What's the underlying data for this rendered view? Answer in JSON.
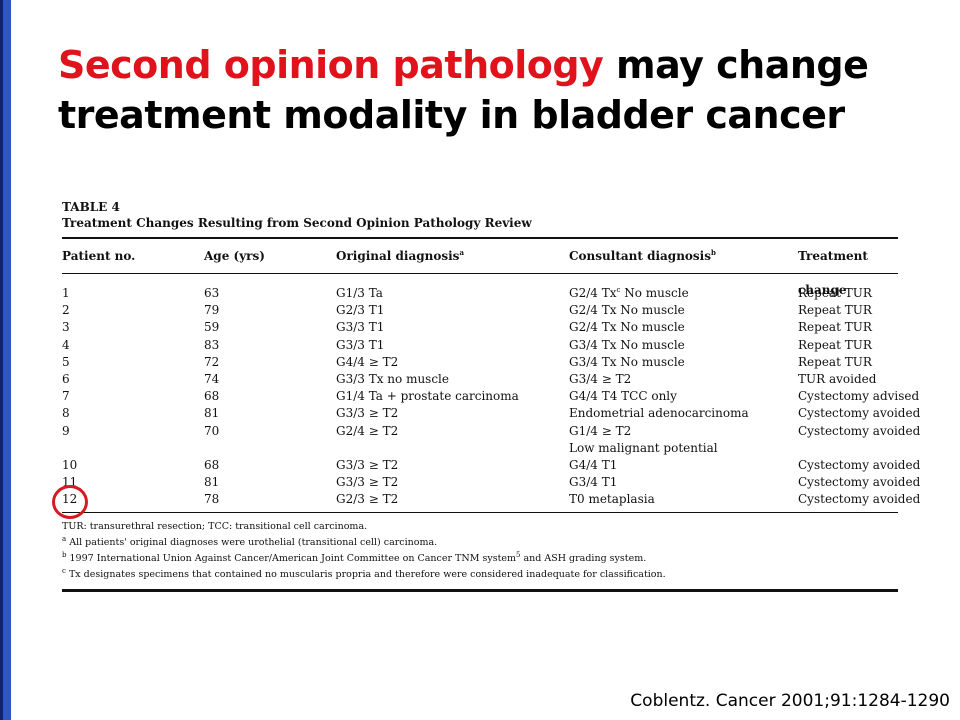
{
  "slide": {
    "title_highlight": "Second opinion pathology",
    "title_rest": " may change treatment modality in bladder cancer",
    "citation": "Coblentz. Cancer 2001;91:1284-1290",
    "accent_color": "#e0121b",
    "sidebar_color": "#2e57c6"
  },
  "table": {
    "label": "TABLE 4",
    "caption": "Treatment Changes Resulting from Second Opinion Pathology Review",
    "headers": {
      "patient": "Patient no.",
      "age": "Age (yrs)",
      "original": "Original diagnosis",
      "original_sup": "a",
      "consultant": "Consultant diagnosis",
      "consultant_sup": "b",
      "change": "Treatment change"
    },
    "rows": [
      {
        "patient": "1",
        "age": "63",
        "original": "G1/3 Ta",
        "consultant": "G2/4 Tx",
        "consultant_sup": "c",
        "consultant_tail": " No muscle",
        "change": "Repeat TUR"
      },
      {
        "patient": "2",
        "age": "79",
        "original": "G2/3 T1",
        "consultant": "G2/4 Tx No muscle",
        "change": "Repeat TUR"
      },
      {
        "patient": "3",
        "age": "59",
        "original": "G3/3 T1",
        "consultant": "G2/4 Tx No muscle",
        "change": "Repeat TUR"
      },
      {
        "patient": "4",
        "age": "83",
        "original": "G3/3 T1",
        "consultant": "G3/4 Tx No muscle",
        "change": "Repeat TUR"
      },
      {
        "patient": "5",
        "age": "72",
        "original": "G4/4 ≥ T2",
        "consultant": "G3/4 Tx No muscle",
        "change": "Repeat TUR"
      },
      {
        "patient": "6",
        "age": "74",
        "original": "G3/3 Tx no muscle",
        "consultant": "G3/4 ≥ T2",
        "change": "TUR avoided"
      },
      {
        "patient": "7",
        "age": "68",
        "original": "G1/4 Ta + prostate carcinoma",
        "consultant": "G4/4 T4 TCC only",
        "change": "Cystectomy advised"
      },
      {
        "patient": "8",
        "age": "81",
        "original": "G3/3 ≥ T2",
        "consultant": "Endometrial adenocarcinoma",
        "change": "Cystectomy avoided"
      },
      {
        "patient": "9",
        "age": "70",
        "original": "G2/4 ≥ T2",
        "consultant": "G1/4 ≥ T2",
        "change": "Cystectomy avoided"
      },
      {
        "patient": "",
        "age": "",
        "original": "",
        "consultant": "Low malignant potential",
        "change": ""
      },
      {
        "patient": "10",
        "age": "68",
        "original": "G3/3 ≥ T2",
        "consultant": "G4/4 T1",
        "change": "Cystectomy avoided"
      },
      {
        "patient": "11",
        "age": "81",
        "original": "G3/3 ≥ T2",
        "consultant": "G3/4 T1",
        "change": "Cystectomy avoided"
      },
      {
        "patient": "12",
        "age": "78",
        "original": "G2/3 ≥ T2",
        "consultant": "T0 metaplasia",
        "change": "Cystectomy avoided"
      }
    ],
    "notes": {
      "abbrev": "TUR: transurethral resection; TCC: transitional cell carcinoma.",
      "a_sup": "a",
      "a": " All patients' original diagnoses were urothelial (transitional cell) carcinoma.",
      "b_sup": "b",
      "b_pre": " 1997 International Union Against Cancer/American Joint Committee on Cancer TNM system",
      "b_mid_sup": "5",
      "b_post": " and ASH grading system.",
      "c_sup": "c",
      "c": " Tx designates specimens that contained no muscularis propria and therefore were considered inadequate for classification."
    }
  }
}
